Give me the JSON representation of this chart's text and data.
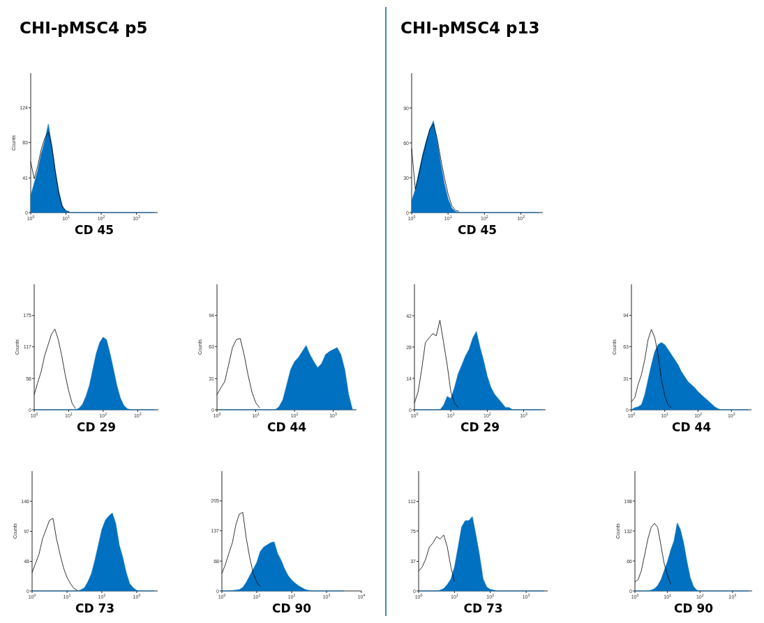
{
  "chart_data": [
    {
      "type": "area",
      "title": "CHI-pMSC4  p5",
      "xlabel": "CD 45",
      "ylabel": "Counts",
      "log": "x",
      "xlim": [
        1,
        4000
      ],
      "xticks": [
        {
          "value": 1,
          "label": "10$^{0}$"
        },
        {
          "value": 10,
          "label": "10$^{1}$"
        },
        {
          "value": 100,
          "label": "10$^{2}$"
        },
        {
          "value": 1000,
          "label": "10$^{3}$"
        }
      ],
      "ylim": [
        0,
        165
      ],
      "yticks": [
        0,
        41,
        83,
        124
      ],
      "x": [
        1,
        1.26,
        1.58,
        2,
        2.51,
        3.16,
        3.98,
        5.01,
        6.31,
        7.94,
        10,
        12.6,
        15.8,
        20,
        25.1,
        31.6,
        39.8,
        50.1,
        63.1,
        79.4,
        100,
        126,
        158,
        200,
        251,
        316,
        398,
        501,
        631,
        794,
        1000,
        1259,
        1585,
        1995,
        2512,
        3162
      ],
      "series": [
        {
          "type": "area",
          "color": "#0070c0",
          "values": [
            20,
            35,
            50,
            70,
            85,
            105,
            80,
            50,
            25,
            8,
            2,
            0,
            0,
            0,
            0,
            0,
            0,
            0,
            0,
            0,
            0,
            0,
            0,
            0,
            0,
            0,
            0,
            0,
            0,
            0,
            0,
            0,
            0,
            0,
            0,
            0
          ]
        },
        {
          "type": "line",
          "color": "#000000",
          "values": [
            60,
            40,
            55,
            75,
            88,
            95,
            78,
            48,
            22,
            6,
            2,
            1,
            null,
            null,
            null,
            null,
            null,
            null,
            null,
            null,
            null,
            null,
            null,
            null,
            null,
            null,
            null,
            null,
            null,
            null,
            null,
            null,
            null,
            null,
            null,
            null
          ]
        }
      ]
    },
    {
      "type": "area",
      "xlabel": "CD 29",
      "ylabel": "Counts",
      "log": "x",
      "xlim": [
        1,
        4000
      ],
      "xticks": [
        {
          "value": 1,
          "label": "10$^{0}$"
        },
        {
          "value": 10,
          "label": "10$^{1}$"
        },
        {
          "value": 100,
          "label": "10$^{2}$"
        },
        {
          "value": 1000,
          "label": "10$^{3}$"
        }
      ],
      "ylim": [
        0,
        233
      ],
      "yticks": [
        0,
        58,
        117,
        175
      ],
      "x": [
        1,
        1.26,
        1.58,
        2,
        2.51,
        3.16,
        3.98,
        5.01,
        6.31,
        7.94,
        10,
        12.6,
        15.8,
        20,
        25.1,
        31.6,
        39.8,
        50.1,
        63.1,
        79.4,
        100,
        126,
        158,
        200,
        251,
        316,
        398,
        501,
        631,
        794,
        1000,
        1259,
        1585,
        1995,
        2512,
        3162
      ],
      "series": [
        {
          "type": "area",
          "color": "#0070c0",
          "values": [
            0,
            0,
            0,
            0,
            0,
            0,
            0,
            0,
            0,
            0,
            0,
            0,
            0,
            3,
            10,
            25,
            45,
            75,
            105,
            125,
            135,
            130,
            105,
            75,
            45,
            22,
            8,
            2,
            0,
            0,
            0,
            0,
            0,
            0,
            0,
            0
          ]
        },
        {
          "type": "line",
          "color": "#000000",
          "values": [
            28,
            50,
            70,
            100,
            120,
            140,
            150,
            130,
            100,
            65,
            35,
            12,
            2,
            null,
            null,
            null,
            null,
            null,
            null,
            null,
            null,
            null,
            null,
            null,
            null,
            null,
            null,
            null,
            null,
            null,
            null,
            null,
            null,
            null,
            null,
            null
          ]
        }
      ]
    },
    {
      "type": "area",
      "xlabel": "CD 44",
      "ylabel": "Counts",
      "log": "x",
      "xlim": [
        1,
        4000
      ],
      "xticks": [
        {
          "value": 1,
          "label": "10$^{0}$"
        },
        {
          "value": 10,
          "label": "10$^{1}$"
        },
        {
          "value": 100,
          "label": "10$^{2}$"
        },
        {
          "value": 1000,
          "label": "10$^{3}$"
        }
      ],
      "ylim": [
        0,
        125
      ],
      "yticks": [
        0,
        31,
        63,
        94
      ],
      "x": [
        1,
        1.26,
        1.58,
        2,
        2.51,
        3.16,
        3.98,
        5.01,
        6.31,
        7.94,
        10,
        12.6,
        15.8,
        20,
        25.1,
        31.6,
        39.8,
        50.1,
        63.1,
        79.4,
        100,
        126,
        158,
        200,
        251,
        316,
        398,
        501,
        631,
        794,
        1000,
        1259,
        1585,
        1995,
        2512,
        3162
      ],
      "series": [
        {
          "type": "area",
          "color": "#0070c0",
          "values": [
            0,
            0,
            0,
            0,
            0,
            0,
            0,
            0,
            0,
            0,
            0,
            0,
            0,
            0,
            0,
            0,
            3,
            10,
            25,
            40,
            48,
            52,
            58,
            64,
            55,
            48,
            42,
            46,
            55,
            58,
            60,
            62,
            55,
            40,
            15,
            0
          ]
        },
        {
          "type": "line",
          "color": "#000000",
          "values": [
            15,
            22,
            28,
            45,
            62,
            70,
            71,
            55,
            35,
            18,
            7,
            2,
            null,
            null,
            null,
            null,
            null,
            null,
            null,
            null,
            null,
            null,
            null,
            null,
            null,
            null,
            null,
            null,
            null,
            null,
            null,
            null,
            null,
            null,
            null,
            null
          ]
        }
      ]
    },
    {
      "type": "area",
      "xlabel": "CD 73",
      "ylabel": "Counts",
      "log": "x",
      "xlim": [
        1,
        4000
      ],
      "xticks": [
        {
          "value": 1,
          "label": "10$^{0}$"
        },
        {
          "value": 10,
          "label": "10$^{1}$"
        },
        {
          "value": 100,
          "label": "10$^{2}$"
        },
        {
          "value": 1000,
          "label": "10$^{3}$"
        }
      ],
      "ylim": [
        0,
        195
      ],
      "yticks": [
        0,
        48,
        97,
        146
      ],
      "x": [
        1,
        1.26,
        1.58,
        2,
        2.51,
        3.16,
        3.98,
        5.01,
        6.31,
        7.94,
        10,
        12.6,
        15.8,
        20,
        25.1,
        31.6,
        39.8,
        50.1,
        63.1,
        79.4,
        100,
        126,
        158,
        200,
        251,
        316,
        398,
        501,
        631,
        794,
        1000,
        1259,
        1585,
        1995,
        2512,
        3162
      ],
      "series": [
        {
          "type": "area",
          "color": "#0070c0",
          "values": [
            0,
            0,
            0,
            0,
            0,
            0,
            0,
            0,
            0,
            0,
            0,
            0,
            0,
            0,
            2,
            5,
            15,
            28,
            50,
            75,
            100,
            115,
            122,
            127,
            110,
            75,
            55,
            30,
            12,
            5,
            1,
            0,
            0,
            0,
            0,
            0
          ]
        },
        {
          "type": "line",
          "color": "#000000",
          "values": [
            30,
            45,
            60,
            85,
            100,
            115,
            118,
            85,
            60,
            38,
            22,
            12,
            4,
            1,
            null,
            null,
            null,
            null,
            null,
            null,
            null,
            null,
            null,
            null,
            null,
            null,
            null,
            null,
            null,
            null,
            null,
            null,
            null,
            null,
            null,
            null
          ]
        }
      ]
    },
    {
      "type": "area",
      "xlabel": "CD 90",
      "log": "x",
      "xlim": [
        1,
        10000
      ],
      "xticks": [
        {
          "value": 1,
          "label": "10$^{0}$"
        },
        {
          "value": 10,
          "label": "10$^{1}$"
        },
        {
          "value": 100,
          "label": "10$^{2}$"
        },
        {
          "value": 1000,
          "label": "10$^{3}$"
        },
        {
          "value": 10000,
          "label": "10$^{4}$"
        }
      ],
      "ylim": [
        0,
        273
      ],
      "yticks": [
        0,
        68,
        137,
        205
      ],
      "x": [
        1,
        1.26,
        1.58,
        2,
        2.51,
        3.16,
        3.98,
        5.01,
        6.31,
        7.94,
        10,
        12.6,
        15.8,
        20,
        25.1,
        31.6,
        39.8,
        50.1,
        63.1,
        79.4,
        100,
        126,
        158,
        200,
        251,
        316,
        398,
        501,
        631,
        794,
        1000,
        1259,
        1585,
        1995,
        2512,
        3162
      ],
      "series": [
        {
          "type": "area",
          "color": "#0070c0",
          "values": [
            0,
            0,
            0,
            1,
            2,
            3,
            8,
            20,
            35,
            50,
            65,
            90,
            100,
            105,
            110,
            112,
            85,
            70,
            50,
            35,
            25,
            18,
            12,
            7,
            3,
            1,
            0,
            0,
            0,
            0,
            0,
            0,
            0,
            0,
            0,
            0
          ]
        },
        {
          "type": "line",
          "color": "#000000",
          "values": [
            40,
            60,
            85,
            110,
            150,
            175,
            179,
            120,
            75,
            40,
            20,
            10,
            null,
            null,
            null,
            null,
            null,
            null,
            null,
            null,
            null,
            null,
            null,
            null,
            null,
            null,
            null,
            null,
            null,
            null,
            null,
            null,
            null,
            null,
            null,
            null
          ]
        }
      ]
    },
    {
      "type": "area",
      "title": "CHI-pMSC4  p13",
      "xlabel": "CD 45",
      "log": "x",
      "xlim": [
        1,
        4000
      ],
      "xticks": [
        {
          "value": 1,
          "label": "10$^{0}$"
        },
        {
          "value": 10,
          "label": "10$^{1}$"
        },
        {
          "value": 100,
          "label": "10$^{2}$"
        },
        {
          "value": 1000,
          "label": "10$^{3}$"
        }
      ],
      "ylim": [
        0,
        120
      ],
      "yticks": [
        0,
        30,
        60,
        90
      ],
      "x": [
        1,
        1.26,
        1.58,
        2,
        2.51,
        3.16,
        3.98,
        5.01,
        6.31,
        7.94,
        10,
        12.6,
        15.8,
        20,
        25.1,
        31.6,
        39.8,
        50.1,
        63.1,
        79.4,
        100,
        126,
        158,
        200,
        251,
        316,
        398,
        501,
        631,
        794,
        1000,
        1259,
        1585,
        1995,
        2512,
        3162
      ],
      "series": [
        {
          "type": "area",
          "color": "#0070c0",
          "values": [
            10,
            20,
            35,
            50,
            62,
            72,
            79,
            62,
            42,
            25,
            12,
            4,
            1,
            0,
            0,
            0,
            0,
            0,
            0,
            0,
            0,
            0,
            0,
            0,
            0,
            0,
            0,
            0,
            0,
            0,
            0,
            0,
            0,
            0,
            0,
            0
          ]
        },
        {
          "type": "line",
          "color": "#000000",
          "values": [
            55,
            20,
            33,
            48,
            60,
            72,
            76,
            64,
            46,
            30,
            16,
            6,
            2,
            1,
            null,
            null,
            null,
            null,
            null,
            null,
            null,
            null,
            null,
            null,
            null,
            null,
            null,
            null,
            null,
            null,
            null,
            null,
            null,
            null,
            null,
            null
          ]
        }
      ]
    },
    {
      "type": "area",
      "xlabel": "CD 29",
      "log": "x",
      "xlim": [
        1,
        4000
      ],
      "xticks": [
        {
          "value": 1,
          "label": "10$^{0}$"
        },
        {
          "value": 10,
          "label": "10$^{1}$"
        },
        {
          "value": 100,
          "label": "10$^{2}$"
        },
        {
          "value": 1000,
          "label": "10$^{3}$"
        }
      ],
      "ylim": [
        0,
        56
      ],
      "yticks": [
        0,
        14,
        28,
        42
      ],
      "x": [
        1,
        1.26,
        1.58,
        2,
        2.51,
        3.16,
        3.98,
        5.01,
        6.31,
        7.94,
        10,
        12.6,
        15.8,
        20,
        25.1,
        31.6,
        39.8,
        50.1,
        63.1,
        79.4,
        100,
        126,
        158,
        200,
        251,
        316,
        398,
        501,
        631,
        794,
        1000,
        1259,
        1585,
        1995,
        2512,
        3162
      ],
      "series": [
        {
          "type": "area",
          "color": "#0070c0",
          "values": [
            0,
            0,
            0,
            0,
            0,
            0,
            0,
            0,
            2,
            6,
            5,
            10,
            16,
            20,
            24,
            27,
            32,
            35,
            28,
            22,
            15,
            10,
            7,
            5,
            3,
            1,
            1,
            0,
            0,
            0,
            0,
            0,
            0,
            0,
            0,
            0
          ]
        },
        {
          "type": "line",
          "color": "#000000",
          "values": [
            3,
            8,
            18,
            30,
            32,
            34,
            33,
            40,
            30,
            20,
            8,
            3,
            1,
            null,
            null,
            null,
            null,
            null,
            null,
            null,
            null,
            null,
            null,
            null,
            null,
            null,
            null,
            null,
            null,
            null,
            null,
            null,
            null,
            null,
            null,
            null
          ]
        }
      ]
    },
    {
      "type": "area",
      "xlabel": "CD 44",
      "ylabel": "Counts",
      "log": "x",
      "xlim": [
        1,
        4000
      ],
      "xticks": [
        {
          "value": 1,
          "label": "10$^{0}$"
        },
        {
          "value": 10,
          "label": "10$^{1}$"
        },
        {
          "value": 100,
          "label": "10$^{2}$"
        },
        {
          "value": 1000,
          "label": "10$^{3}$"
        }
      ],
      "ylim": [
        0,
        125
      ],
      "yticks": [
        0,
        31,
        63,
        94
      ],
      "x": [
        1,
        1.26,
        1.58,
        2,
        2.51,
        3.16,
        3.98,
        5.01,
        6.31,
        7.94,
        10,
        12.6,
        15.8,
        20,
        25.1,
        31.6,
        39.8,
        50.1,
        63.1,
        79.4,
        100,
        126,
        158,
        200,
        251,
        316,
        398,
        501,
        631,
        794,
        1000,
        1259,
        1585,
        1995,
        2512,
        3162
      ],
      "series": [
        {
          "type": "area",
          "color": "#0070c0",
          "values": [
            0,
            2,
            3,
            5,
            15,
            30,
            45,
            58,
            65,
            67,
            65,
            60,
            55,
            50,
            45,
            38,
            33,
            28,
            25,
            22,
            18,
            15,
            12,
            9,
            6,
            3,
            1,
            0,
            0,
            0,
            0,
            0,
            0,
            0,
            0,
            0
          ]
        },
        {
          "type": "line",
          "color": "#000000",
          "values": [
            8,
            12,
            25,
            35,
            50,
            70,
            80,
            72,
            55,
            30,
            14,
            5,
            2,
            null,
            null,
            null,
            null,
            null,
            null,
            null,
            null,
            null,
            null,
            null,
            null,
            null,
            null,
            null,
            null,
            null,
            null,
            null,
            null,
            null,
            null,
            null
          ]
        }
      ]
    },
    {
      "type": "area",
      "xlabel": "CD 73",
      "log": "x",
      "xlim": [
        1,
        4000
      ],
      "xticks": [
        {
          "value": 1,
          "label": "10$^{0}$"
        },
        {
          "value": 10,
          "label": "10$^{1}$"
        },
        {
          "value": 100,
          "label": "10$^{2}$"
        },
        {
          "value": 1000,
          "label": "10$^{3}$"
        }
      ],
      "ylim": [
        0,
        150
      ],
      "yticks": [
        0,
        37,
        75,
        112
      ],
      "x": [
        1,
        1.26,
        1.58,
        2,
        2.51,
        3.16,
        3.98,
        5.01,
        6.31,
        7.94,
        10,
        12.6,
        15.8,
        20,
        25.1,
        31.6,
        39.8,
        50.1,
        63.1,
        79.4,
        100,
        126,
        158,
        200,
        251,
        316,
        398,
        501,
        631,
        794,
        1000,
        1259,
        1585,
        1995,
        2512,
        3162
      ],
      "series": [
        {
          "type": "area",
          "color": "#0070c0",
          "values": [
            0,
            0,
            0,
            0,
            0,
            0,
            1,
            3,
            8,
            15,
            30,
            55,
            80,
            88,
            88,
            93,
            70,
            45,
            15,
            5,
            2,
            1,
            0,
            0,
            0,
            0,
            0,
            0,
            0,
            0,
            0,
            0,
            0,
            0,
            0,
            0
          ]
        },
        {
          "type": "line",
          "color": "#000000",
          "values": [
            25,
            30,
            40,
            55,
            60,
            68,
            65,
            70,
            55,
            30,
            12,
            null,
            null,
            null,
            null,
            null,
            null,
            null,
            null,
            null,
            null,
            null,
            null,
            null,
            null,
            null,
            null,
            null,
            null,
            null,
            null,
            null,
            null,
            null,
            null,
            null
          ]
        }
      ]
    },
    {
      "type": "area",
      "xlabel": "CD 90",
      "ylabel": "Counts",
      "log": "x",
      "xlim": [
        1,
        4000
      ],
      "xticks": [
        {
          "value": 1,
          "label": "10$^{0}$"
        },
        {
          "value": 10,
          "label": "10$^{1}$"
        },
        {
          "value": 100,
          "label": "10$^{2}$"
        },
        {
          "value": 1000,
          "label": "10$^{3}$"
        }
      ],
      "ylim": [
        0,
        264
      ],
      "yticks": [
        0,
        66,
        132,
        198
      ],
      "x": [
        1,
        1.26,
        1.58,
        2,
        2.51,
        3.16,
        3.98,
        5.01,
        6.31,
        7.94,
        10,
        12.6,
        15.8,
        20,
        25.1,
        31.6,
        39.8,
        50.1,
        63.1,
        79.4,
        100,
        126,
        158,
        200,
        251,
        316,
        398,
        501,
        631,
        794,
        1000,
        1259,
        1585,
        1995,
        2512,
        3162
      ],
      "series": [
        {
          "type": "area",
          "color": "#0070c0",
          "values": [
            0,
            0,
            0,
            0,
            0,
            2,
            5,
            12,
            25,
            45,
            65,
            90,
            110,
            150,
            135,
            105,
            65,
            30,
            10,
            2,
            0,
            0,
            0,
            0,
            0,
            0,
            0,
            0,
            0,
            0,
            0,
            0,
            0,
            0,
            0,
            0
          ]
        },
        {
          "type": "line",
          "color": "#000000",
          "values": [
            20,
            25,
            45,
            80,
            115,
            140,
            149,
            140,
            100,
            60,
            35,
            15,
            null,
            null,
            null,
            null,
            null,
            null,
            null,
            null,
            null,
            null,
            null,
            null,
            null,
            null,
            null,
            null,
            null,
            null,
            null,
            null,
            null,
            null,
            null,
            null
          ]
        }
      ]
    }
  ]
}
